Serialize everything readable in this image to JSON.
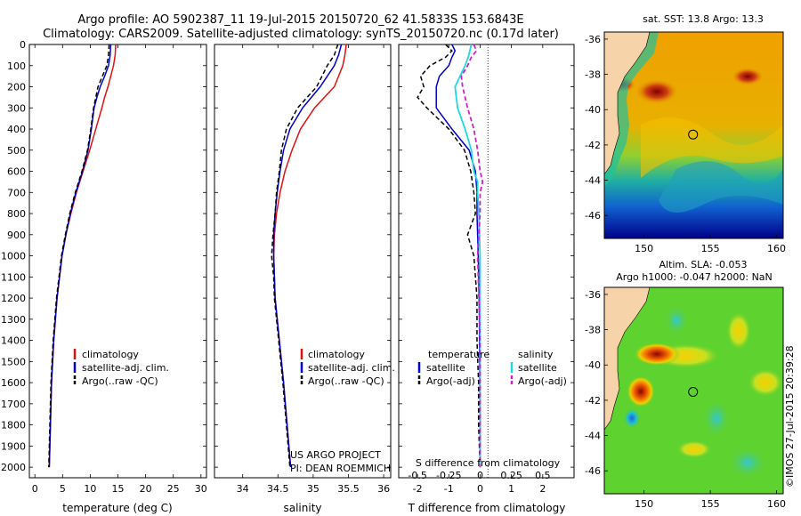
{
  "header": {
    "line1": "Argo profile: AO 5902387_11 19-Jul-2015 20150720_62 41.5833S 153.6843E",
    "line2": "Climatology: CARS2009. Satellite-adjusted climatology: synTS_20150720.nc (0.17d later)"
  },
  "colors": {
    "clim": "#dd1111",
    "sat": "#0000cc",
    "argo": "#000000",
    "sat_s": "#22d8e0",
    "argo_s": "#d020c8"
  },
  "chart_data": [
    {
      "type": "line",
      "name": "temperature",
      "xlabel": "temperature (deg C)",
      "ylabel": "",
      "xlim": [
        -1,
        31
      ],
      "ylim": [
        2050,
        0
      ],
      "xticks": [
        "0",
        "5",
        "10",
        "15",
        "20",
        "25",
        "30"
      ],
      "yticks": [
        "0",
        "100",
        "200",
        "300",
        "400",
        "500",
        "600",
        "700",
        "800",
        "900",
        "1000",
        "1100",
        "1200",
        "1300",
        "1400",
        "1500",
        "1600",
        "1700",
        "1800",
        "1900",
        "2000"
      ],
      "legend": [
        "climatology",
        "satellite-adj. clim.",
        "Argo(..raw -QC)"
      ],
      "series": [
        {
          "name": "climatology",
          "depth": [
            0,
            50,
            100,
            150,
            200,
            250,
            300,
            400,
            500,
            600,
            700,
            800,
            900,
            1000,
            1200,
            1400,
            1600,
            1800,
            2000
          ],
          "values": [
            14.6,
            14.5,
            14.2,
            13.7,
            13.2,
            12.6,
            12.1,
            11.0,
            9.9,
            8.7,
            7.5,
            6.5,
            5.6,
            4.9,
            4.0,
            3.4,
            3.0,
            2.8,
            2.6
          ]
        },
        {
          "name": "satellite-adj. clim.",
          "depth": [
            0,
            50,
            100,
            150,
            200,
            250,
            300,
            400,
            500,
            600,
            700,
            800,
            900,
            1000,
            1200,
            1400,
            1600,
            1800,
            2000
          ],
          "values": [
            13.7,
            13.6,
            13.3,
            12.6,
            11.8,
            11.2,
            10.7,
            10.2,
            9.6,
            8.6,
            7.4,
            6.4,
            5.6,
            4.9,
            4.0,
            3.4,
            3.0,
            2.8,
            2.6
          ]
        },
        {
          "name": "Argo(..raw -QC)",
          "depth": [
            0,
            50,
            100,
            150,
            200,
            250,
            300,
            400,
            500,
            600,
            700,
            800,
            900,
            1000,
            1200,
            1400,
            1600,
            1800,
            2000
          ],
          "values": [
            13.4,
            13.3,
            13.0,
            12.2,
            11.4,
            11.0,
            10.6,
            10.1,
            9.5,
            8.5,
            7.3,
            6.3,
            5.5,
            4.8,
            3.9,
            3.3,
            2.9,
            2.7,
            2.5
          ]
        }
      ]
    },
    {
      "type": "line",
      "name": "salinity",
      "xlabel": "salinity",
      "ylabel": "",
      "xlim": [
        33.6,
        36.1
      ],
      "ylim": [
        2050,
        0
      ],
      "xticks": [
        "34",
        "34.5",
        "35",
        "35.5",
        "36"
      ],
      "legend": [
        "climatology",
        "satellite-adj. clim.",
        "Argo(..raw -QC)"
      ],
      "annotation": [
        "US ARGO PROJECT",
        "PI: DEAN ROEMMICH"
      ],
      "series": [
        {
          "name": "climatology",
          "depth": [
            0,
            50,
            100,
            200,
            300,
            400,
            500,
            600,
            700,
            800,
            900,
            1000,
            1200,
            1400,
            1600,
            1800,
            2000
          ],
          "values": [
            35.47,
            35.45,
            35.42,
            35.3,
            35.02,
            34.82,
            34.7,
            34.6,
            34.53,
            34.48,
            34.45,
            34.44,
            34.46,
            34.52,
            34.58,
            34.63,
            34.68
          ]
        },
        {
          "name": "satellite-adj. clim.",
          "depth": [
            0,
            50,
            100,
            200,
            300,
            400,
            500,
            600,
            700,
            800,
            900,
            1000,
            1200,
            1400,
            1600,
            1800,
            2000
          ],
          "values": [
            35.4,
            35.36,
            35.3,
            35.1,
            34.85,
            34.67,
            34.58,
            34.53,
            34.49,
            34.46,
            34.44,
            34.44,
            34.46,
            34.52,
            34.58,
            34.63,
            34.68
          ]
        },
        {
          "name": "Argo(..raw -QC)",
          "depth": [
            0,
            50,
            100,
            200,
            300,
            400,
            500,
            600,
            700,
            800,
            900,
            1000,
            1100,
            1200,
            1400,
            1600,
            1800,
            2000
          ],
          "values": [
            35.35,
            35.3,
            35.2,
            35.05,
            34.78,
            34.62,
            34.55,
            34.52,
            34.48,
            34.46,
            34.43,
            34.41,
            34.44,
            34.45,
            34.51,
            34.57,
            34.62,
            34.67
          ]
        }
      ]
    },
    {
      "type": "line",
      "name": "difference",
      "xlabel": "T difference from climatology",
      "x2label": "S difference from climatology",
      "xlim": [
        -2.6,
        3.0
      ],
      "ylim": [
        2050,
        0
      ],
      "xticks": [
        "-2",
        "-1",
        "0",
        "1",
        "2"
      ],
      "x2ticks": [
        "-0.5",
        "-0.25",
        "0",
        "0.25",
        "0.5"
      ],
      "legend_titles": [
        "temperature",
        "salinity"
      ],
      "legend": [
        "satellite",
        "Argo(-adj)",
        "satellite",
        "Argo(-adj)"
      ],
      "series": [
        {
          "name": "satellite",
          "depth": [
            0,
            30,
            60,
            100,
            150,
            200,
            300,
            400,
            500,
            600,
            700,
            800,
            900,
            1000,
            1200,
            1400,
            1600,
            1800,
            2000
          ],
          "values": [
            -0.9,
            -0.8,
            -0.9,
            -1.0,
            -1.3,
            -1.4,
            -1.4,
            -0.9,
            -0.35,
            -0.15,
            -0.1,
            -0.1,
            -0.08,
            -0.06,
            -0.03,
            -0.02,
            -0.01,
            0.0,
            0.0
          ]
        },
        {
          "name": "Argo(-adj)",
          "depth": [
            0,
            30,
            60,
            100,
            150,
            200,
            250,
            300,
            400,
            500,
            600,
            700,
            800,
            900,
            1000,
            1200,
            1400,
            1600,
            1800,
            2000
          ],
          "values": [
            -1.1,
            -0.9,
            -1.1,
            -1.6,
            -1.9,
            -1.8,
            -2.0,
            -1.7,
            -1.0,
            -0.5,
            -0.3,
            -0.2,
            -0.15,
            -0.4,
            -0.2,
            -0.1,
            -0.1,
            -0.05,
            -0.05,
            0.0
          ]
        },
        {
          "name": "satellite (S)",
          "depth": [
            0,
            50,
            100,
            200,
            300,
            400,
            500,
            600,
            650,
            700,
            800,
            900,
            1000,
            1200,
            1400,
            1600,
            1800,
            2000
          ],
          "values": [
            -0.07,
            -0.09,
            -0.12,
            -0.2,
            -0.18,
            -0.12,
            -0.07,
            -0.05,
            -0.02,
            -0.02,
            -0.01,
            -0.005,
            0.0,
            0.0,
            0.0,
            0.0,
            0.0,
            0.0
          ]
        },
        {
          "name": "Argo(-adj) (S)",
          "depth": [
            0,
            30,
            60,
            100,
            150,
            200,
            300,
            400,
            500,
            600,
            650,
            700,
            800,
            900,
            1000,
            1200,
            1400,
            1600,
            1800,
            2000
          ],
          "values": [
            -0.05,
            -0.03,
            -0.07,
            -0.1,
            -0.15,
            -0.14,
            -0.1,
            -0.05,
            -0.02,
            0.0,
            0.02,
            0.0,
            0.0,
            -0.01,
            -0.02,
            -0.01,
            0.0,
            0.0,
            0.0,
            0.0
          ]
        }
      ]
    },
    {
      "type": "heatmap",
      "name": "sst_map",
      "title": "sat. SST: 13.8 Argo: 13.3",
      "xticks": [
        "150",
        "155",
        "160"
      ],
      "yticks": [
        "-36",
        "-38",
        "-40",
        "-42",
        "-44",
        "-46"
      ],
      "xlim": [
        147,
        160.5
      ],
      "ylim": [
        -47.3,
        -35.6
      ],
      "argo_position": [
        153.68,
        -41.58
      ]
    },
    {
      "type": "heatmap",
      "name": "sla_map",
      "title": "Altim. SLA: -0.053",
      "subtitle": "Argo h1000: -0.047 h2000: NaN",
      "xticks": [
        "150",
        "155",
        "160"
      ],
      "yticks": [
        "-36",
        "-38",
        "-40",
        "-42",
        "-44",
        "-46"
      ],
      "xlim": [
        147,
        160.5
      ],
      "ylim": [
        -47.3,
        -35.6
      ],
      "argo_position": [
        153.68,
        -41.58
      ]
    }
  ],
  "credit": "©IMOS 27-Jul-2015 20:39:28"
}
